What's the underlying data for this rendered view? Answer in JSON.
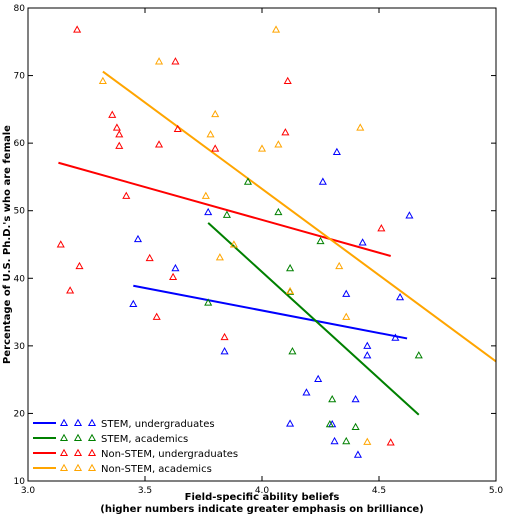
{
  "chart_data": {
    "type": "scatter",
    "xlabel": "Field-specific ability beliefs",
    "xlabel_sub": "(higher numbers indicate greater emphasis on brilliance)",
    "ylabel": "Percentage of U.S. Ph.D.'s who are female",
    "xlim": [
      3.0,
      5.0
    ],
    "ylim": [
      10,
      80
    ],
    "xticks": [
      3.0,
      3.5,
      4.0,
      4.5,
      5.0
    ],
    "xtick_labels": [
      "3.0",
      "3.5",
      "4.0",
      "4.5",
      "5.0"
    ],
    "yticks": [
      10,
      20,
      30,
      40,
      50,
      60,
      70,
      80
    ],
    "ytick_labels": [
      "10",
      "20",
      "30",
      "40",
      "50",
      "60",
      "70",
      "80"
    ],
    "grid": false,
    "legend_position": "bottom-left",
    "marker": "open-triangle",
    "series": [
      {
        "name": "STEM, undergraduates",
        "color": "#0000ff",
        "points": [
          [
            3.45,
            36.2
          ],
          [
            3.47,
            45.8
          ],
          [
            3.63,
            41.5
          ],
          [
            3.77,
            49.8
          ],
          [
            3.84,
            29.2
          ],
          [
            4.12,
            18.5
          ],
          [
            4.19,
            23.1
          ],
          [
            4.24,
            25.1
          ],
          [
            4.26,
            54.3
          ],
          [
            4.3,
            18.4
          ],
          [
            4.31,
            15.9
          ],
          [
            4.32,
            58.7
          ],
          [
            4.36,
            37.7
          ],
          [
            4.4,
            22.1
          ],
          [
            4.41,
            13.9
          ],
          [
            4.43,
            45.3
          ],
          [
            4.45,
            28.6
          ],
          [
            4.45,
            30.0
          ],
          [
            4.57,
            31.2
          ],
          [
            4.59,
            37.2
          ],
          [
            4.63,
            49.3
          ]
        ],
        "fit": [
          [
            3.45,
            38.9
          ],
          [
            4.62,
            31.1
          ]
        ]
      },
      {
        "name": "STEM, academics",
        "color": "#008000",
        "points": [
          [
            3.77,
            36.4
          ],
          [
            3.85,
            49.4
          ],
          [
            3.94,
            54.3
          ],
          [
            4.07,
            49.8
          ],
          [
            4.12,
            41.5
          ],
          [
            4.12,
            38.0
          ],
          [
            4.13,
            29.2
          ],
          [
            4.25,
            45.5
          ],
          [
            4.29,
            18.4
          ],
          [
            4.3,
            22.1
          ],
          [
            4.36,
            15.9
          ],
          [
            4.4,
            18.0
          ],
          [
            4.67,
            28.6
          ]
        ],
        "fit": [
          [
            3.77,
            48.2
          ],
          [
            4.67,
            19.8
          ]
        ]
      },
      {
        "name": "Non-STEM, undergraduates",
        "color": "#ff0000",
        "points": [
          [
            3.14,
            45.0
          ],
          [
            3.18,
            38.2
          ],
          [
            3.21,
            76.8
          ],
          [
            3.22,
            41.8
          ],
          [
            3.36,
            64.2
          ],
          [
            3.38,
            62.3
          ],
          [
            3.39,
            61.3
          ],
          [
            3.39,
            59.6
          ],
          [
            3.42,
            52.2
          ],
          [
            3.52,
            43.0
          ],
          [
            3.55,
            34.3
          ],
          [
            3.56,
            59.8
          ],
          [
            3.62,
            40.2
          ],
          [
            3.63,
            72.1
          ],
          [
            3.64,
            62.1
          ],
          [
            3.8,
            59.2
          ],
          [
            3.84,
            31.3
          ],
          [
            4.1,
            61.6
          ],
          [
            4.11,
            69.2
          ],
          [
            4.51,
            47.4
          ],
          [
            4.55,
            15.7
          ]
        ],
        "fit": [
          [
            3.13,
            57.1
          ],
          [
            4.55,
            43.3
          ]
        ]
      },
      {
        "name": "Non-STEM, academics",
        "color": "#ffa500",
        "points": [
          [
            3.32,
            69.2
          ],
          [
            3.56,
            72.1
          ],
          [
            3.76,
            52.2
          ],
          [
            3.78,
            61.3
          ],
          [
            3.8,
            64.3
          ],
          [
            3.82,
            43.1
          ],
          [
            3.88,
            45.0
          ],
          [
            4.0,
            59.2
          ],
          [
            4.06,
            76.8
          ],
          [
            4.07,
            59.8
          ],
          [
            4.12,
            38.1
          ],
          [
            4.33,
            41.8
          ],
          [
            4.36,
            34.3
          ],
          [
            4.42,
            62.3
          ],
          [
            4.45,
            15.8
          ]
        ],
        "fit": [
          [
            3.32,
            70.6
          ],
          [
            5.0,
            27.7
          ]
        ]
      }
    ]
  }
}
